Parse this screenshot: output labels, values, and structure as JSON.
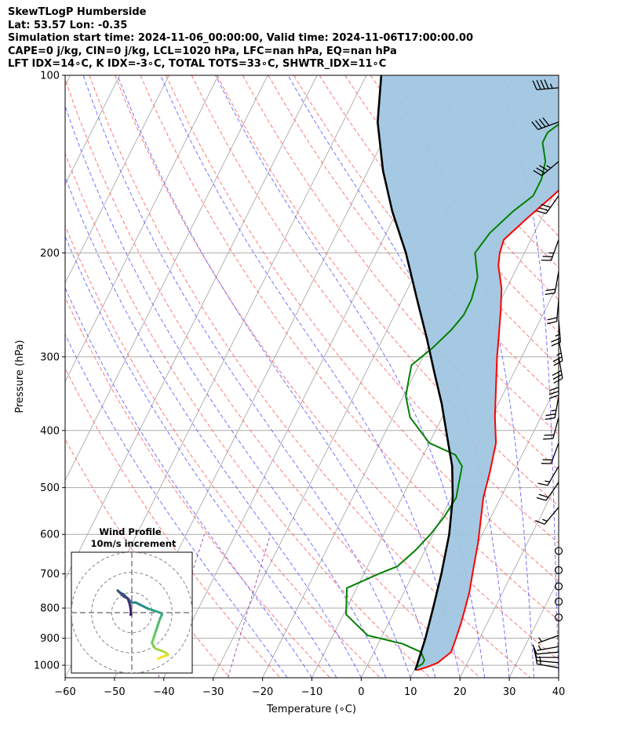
{
  "header": {
    "line1": "SkewTLogP Humberside",
    "line2": "Lat: 53.57   Lon: -0.35",
    "line3": "Simulation start time: 2024-11-06_00:00:00, Valid time: 2024-11-06T17:00:00.00",
    "line4": "CAPE=0 j/kg, CIN=0 j/kg, LCL=1020 hPa, LFC=nan hPa, EQ=nan hPa",
    "line5": "LFT IDX=14∘C, K IDX=-3∘C, TOTAL TOTS=33∘C, SHWTR_IDX=11∘C"
  },
  "chart_data": {
    "type": "line",
    "xlabel": "Temperature (∘C)",
    "ylabel": "Pressure (hPa)",
    "x_ticks": [
      -60,
      -50,
      -40,
      -30,
      -20,
      -10,
      0,
      10,
      20,
      30,
      40
    ],
    "x_tick_labels": [
      "−60",
      "−50",
      "−40",
      "−30",
      "−20",
      "−10",
      "0",
      "10",
      "20",
      "30",
      "40"
    ],
    "y_ticks": [
      100,
      200,
      300,
      400,
      500,
      600,
      700,
      800,
      900,
      1000
    ],
    "xlim": [
      -60,
      40
    ],
    "ylim": [
      1050,
      100
    ],
    "y_scale": "log",
    "grid": true,
    "colors": {
      "temperature": "#ff0000",
      "dewpoint": "#008000",
      "parcel": "#000000",
      "fill": "#a0c6e0",
      "dry_adiabat": "#ff6060",
      "moist_adiabat": "#5a5aff",
      "mixing_ratio": "#9944aa",
      "isotherm": "#aaaaaa"
    },
    "series": [
      {
        "key": "temperature",
        "x": [
          10.5,
          12.5,
          14,
          15.6,
          15.2,
          14.7,
          14,
          13.2,
          12,
          10,
          6.5,
          5.2,
          4.2,
          3.5,
          0.7,
          -2,
          -5,
          -6.5,
          -9,
          -11,
          -14,
          -15,
          -15.5,
          -13,
          -10,
          -6,
          -4.2,
          -3.3,
          -2.3,
          -1.6
        ],
        "p": [
          1020,
          1005,
          990,
          950,
          900,
          850,
          800,
          750,
          700,
          620,
          520,
          470,
          440,
          420,
          380,
          340,
          300,
          280,
          250,
          230,
          210,
          200,
          190,
          175,
          160,
          140,
          125,
          115,
          105,
          100
        ]
      },
      {
        "key": "dewpoint",
        "x": [
          10,
          11,
          11,
          9.5,
          5,
          -3,
          -9.5,
          -12,
          -7,
          -4,
          -2,
          -0.5,
          0.5,
          1,
          0,
          -1,
          -3.5,
          -10,
          -16.5,
          -19.5,
          -20.5,
          -21.5,
          -19,
          -17,
          -16,
          -16,
          -17,
          -20,
          -19,
          -16.5,
          -14,
          -14,
          -15,
          -17.5,
          -17.5,
          -13.8,
          -10.2
        ],
        "p": [
          1010,
          995,
          980,
          950,
          920,
          890,
          820,
          740,
          700,
          680,
          640,
          600,
          560,
          520,
          490,
          460,
          440,
          420,
          380,
          350,
          330,
          310,
          290,
          270,
          255,
          240,
          220,
          200,
          185,
          170,
          160,
          150,
          140,
          130,
          125,
          115,
          100
        ]
      },
      {
        "key": "parcel",
        "x": [
          10.2,
          9,
          7.5,
          5.7,
          3.3,
          0.3,
          -3,
          -7,
          -11.5,
          -16,
          -21,
          -27,
          -34,
          -41,
          -47,
          -53,
          -57
        ],
        "p": [
          1020,
          900,
          800,
          700,
          600,
          520,
          460,
          410,
          360,
          320,
          280,
          240,
          200,
          170,
          145,
          120,
          100
        ]
      }
    ],
    "wind_barbs": {
      "p": [
        1010,
        990,
        970,
        950,
        930,
        890,
        830,
        780,
        735,
        690,
        640,
        540,
        490,
        460,
        420,
        380,
        350,
        320,
        300,
        280,
        260,
        240,
        215,
        190,
        160,
        140,
        120,
        105
      ],
      "speed_kt": [
        15,
        15,
        10,
        10,
        5,
        5,
        0,
        0,
        0,
        0,
        0,
        15,
        20,
        15,
        20,
        20,
        25,
        30,
        30,
        25,
        25,
        20,
        20,
        25,
        30,
        35,
        40,
        45
      ],
      "direction": [
        280,
        275,
        270,
        265,
        260,
        250,
        0,
        0,
        0,
        0,
        0,
        220,
        215,
        210,
        200,
        195,
        190,
        180,
        170,
        170,
        175,
        185,
        190,
        200,
        215,
        230,
        250,
        265
      ]
    },
    "hodograph": {
      "title_line1": "Wind Profile",
      "title_line2": "10m/s increment",
      "range": 30,
      "rings": [
        10,
        20,
        30
      ],
      "colormap": [
        "#440154",
        "#3b528b",
        "#21918c",
        "#5ec962",
        "#fde725"
      ],
      "u": [
        13,
        15,
        18,
        17,
        15,
        12,
        11,
        10,
        11,
        12,
        13,
        14,
        15,
        14,
        11,
        8,
        6,
        4,
        2,
        0,
        -2,
        -4,
        -6,
        -7,
        -6,
        -4,
        -2,
        -1,
        -0.5,
        -0.5,
        -0.5,
        -0.5
      ],
      "v": [
        -23,
        -22,
        -21,
        -20,
        -19,
        -18,
        -17,
        -15,
        -12,
        -9,
        -6,
        -3,
        -1,
        0,
        1,
        2,
        3,
        4,
        5,
        5,
        7,
        9,
        10,
        11,
        10,
        8,
        7,
        4,
        1,
        -1,
        -1,
        -1
      ]
    }
  }
}
